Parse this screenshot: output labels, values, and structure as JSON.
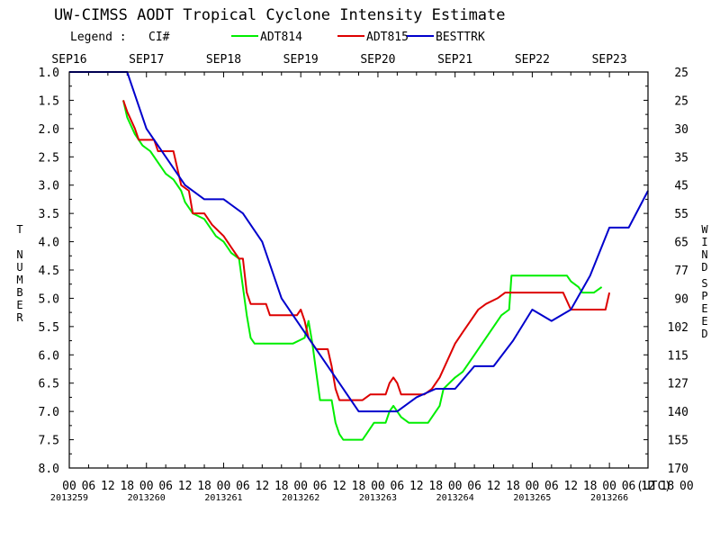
{
  "chart_data": {
    "type": "line",
    "title": "UW-CIMSS AODT Tropical Cyclone Intensity Estimate",
    "legend": {
      "label": "Legend :",
      "ci_label": "CI#",
      "placement": "top",
      "entries": [
        {
          "name": "ADT814",
          "color": "#00ee00"
        },
        {
          "name": "ADT815",
          "color": "#dd0000"
        },
        {
          "name": "BESTTRK",
          "color": "#0000cc"
        }
      ]
    },
    "left_axis": {
      "label_letters": [
        "T",
        "N",
        "U",
        "M",
        "B",
        "E",
        "R"
      ],
      "ticks": [
        "1.0",
        "1.5",
        "2.0",
        "2.5",
        "3.0",
        "3.5",
        "4.0",
        "4.5",
        "5.0",
        "5.5",
        "6.0",
        "6.5",
        "7.0",
        "7.5",
        "8.0"
      ],
      "ylim": [
        1.0,
        8.0
      ],
      "inverted": true
    },
    "right_axis": {
      "label_letters_1": [
        "W",
        "I",
        "N",
        "D"
      ],
      "label_letters_2": [
        "S",
        "P",
        "E",
        "E",
        "D"
      ],
      "ticks": [
        "25",
        "25",
        "30",
        "35",
        "45",
        "55",
        "65",
        "77",
        "90",
        "102",
        "115",
        "127",
        "140",
        "155",
        "170"
      ]
    },
    "top_dates": [
      "SEP16",
      "SEP17",
      "SEP18",
      "SEP19",
      "SEP20",
      "SEP21",
      "SEP22",
      "SEP23"
    ],
    "bottom_hours": [
      "00",
      "06",
      "12",
      "18",
      "00",
      "06",
      "12",
      "18",
      "00",
      "06",
      "12",
      "18",
      "00",
      "06",
      "12",
      "18",
      "00",
      "06",
      "12",
      "18",
      "00",
      "06",
      "12",
      "18",
      "00",
      "06",
      "12",
      "18",
      "00",
      "06",
      "12",
      "18",
      "00"
    ],
    "utc_label": "(UTC)",
    "julian_dates": [
      "2013259",
      "2013260",
      "2013261",
      "2013262",
      "2013263",
      "2013264",
      "2013265",
      "2013266"
    ],
    "xlim_days": [
      0,
      7.5
    ],
    "series": [
      {
        "name": "ADT814",
        "color": "#00ee00",
        "points": [
          [
            0.7,
            1.5
          ],
          [
            0.75,
            1.8
          ],
          [
            0.85,
            2.1
          ],
          [
            0.9,
            2.2
          ],
          [
            0.95,
            2.3
          ],
          [
            1.05,
            2.4
          ],
          [
            1.15,
            2.6
          ],
          [
            1.25,
            2.8
          ],
          [
            1.35,
            2.9
          ],
          [
            1.45,
            3.1
          ],
          [
            1.5,
            3.3
          ],
          [
            1.6,
            3.5
          ],
          [
            1.75,
            3.6
          ],
          [
            1.9,
            3.9
          ],
          [
            2.0,
            4.0
          ],
          [
            2.1,
            4.2
          ],
          [
            2.2,
            4.3
          ],
          [
            2.25,
            4.8
          ],
          [
            2.3,
            5.3
          ],
          [
            2.35,
            5.7
          ],
          [
            2.4,
            5.8
          ],
          [
            2.6,
            5.8
          ],
          [
            2.9,
            5.8
          ],
          [
            3.05,
            5.7
          ],
          [
            3.1,
            5.4
          ],
          [
            3.15,
            5.8
          ],
          [
            3.2,
            6.3
          ],
          [
            3.25,
            6.8
          ],
          [
            3.4,
            6.8
          ],
          [
            3.45,
            7.2
          ],
          [
            3.5,
            7.4
          ],
          [
            3.55,
            7.5
          ],
          [
            3.8,
            7.5
          ],
          [
            3.85,
            7.4
          ],
          [
            3.95,
            7.2
          ],
          [
            4.1,
            7.2
          ],
          [
            4.15,
            7.0
          ],
          [
            4.2,
            6.9
          ],
          [
            4.3,
            7.1
          ],
          [
            4.4,
            7.2
          ],
          [
            4.65,
            7.2
          ],
          [
            4.8,
            6.9
          ],
          [
            4.85,
            6.6
          ],
          [
            5.0,
            6.4
          ],
          [
            5.1,
            6.3
          ],
          [
            5.25,
            6.0
          ],
          [
            5.35,
            5.8
          ],
          [
            5.5,
            5.5
          ],
          [
            5.6,
            5.3
          ],
          [
            5.7,
            5.2
          ],
          [
            5.73,
            4.6
          ],
          [
            6.45,
            4.6
          ],
          [
            6.5,
            4.7
          ],
          [
            6.6,
            4.8
          ],
          [
            6.65,
            4.9
          ],
          [
            6.8,
            4.9
          ],
          [
            6.9,
            4.8
          ]
        ]
      },
      {
        "name": "ADT815",
        "color": "#dd0000",
        "points": [
          [
            0.7,
            1.5
          ],
          [
            0.75,
            1.7
          ],
          [
            0.85,
            2.0
          ],
          [
            0.9,
            2.2
          ],
          [
            1.1,
            2.2
          ],
          [
            1.15,
            2.4
          ],
          [
            1.35,
            2.4
          ],
          [
            1.4,
            2.7
          ],
          [
            1.45,
            3.0
          ],
          [
            1.55,
            3.1
          ],
          [
            1.6,
            3.5
          ],
          [
            1.75,
            3.5
          ],
          [
            1.85,
            3.7
          ],
          [
            2.0,
            3.9
          ],
          [
            2.1,
            4.1
          ],
          [
            2.2,
            4.3
          ],
          [
            2.25,
            4.3
          ],
          [
            2.3,
            4.9
          ],
          [
            2.35,
            5.1
          ],
          [
            2.55,
            5.1
          ],
          [
            2.6,
            5.3
          ],
          [
            2.95,
            5.3
          ],
          [
            3.0,
            5.2
          ],
          [
            3.05,
            5.4
          ],
          [
            3.1,
            5.7
          ],
          [
            3.2,
            5.9
          ],
          [
            3.35,
            5.9
          ],
          [
            3.4,
            6.2
          ],
          [
            3.45,
            6.6
          ],
          [
            3.5,
            6.8
          ],
          [
            3.8,
            6.8
          ],
          [
            3.9,
            6.7
          ],
          [
            4.1,
            6.7
          ],
          [
            4.15,
            6.5
          ],
          [
            4.2,
            6.4
          ],
          [
            4.25,
            6.5
          ],
          [
            4.3,
            6.7
          ],
          [
            4.4,
            6.7
          ],
          [
            4.6,
            6.7
          ],
          [
            4.7,
            6.6
          ],
          [
            4.8,
            6.4
          ],
          [
            4.9,
            6.1
          ],
          [
            5.0,
            5.8
          ],
          [
            5.1,
            5.6
          ],
          [
            5.2,
            5.4
          ],
          [
            5.3,
            5.2
          ],
          [
            5.4,
            5.1
          ],
          [
            5.55,
            5.0
          ],
          [
            5.65,
            4.9
          ],
          [
            6.0,
            4.9
          ],
          [
            6.4,
            4.9
          ],
          [
            6.5,
            5.2
          ],
          [
            6.95,
            5.2
          ],
          [
            7.0,
            4.9
          ]
        ]
      },
      {
        "name": "BESTTRK",
        "color": "#0000cc",
        "points": [
          [
            0.0,
            1.0
          ],
          [
            0.75,
            1.0
          ],
          [
            1.0,
            2.0
          ],
          [
            1.25,
            2.5
          ],
          [
            1.5,
            3.0
          ],
          [
            1.75,
            3.25
          ],
          [
            2.0,
            3.25
          ],
          [
            2.25,
            3.5
          ],
          [
            2.5,
            4.0
          ],
          [
            2.75,
            5.0
          ],
          [
            3.0,
            5.5
          ],
          [
            3.25,
            6.0
          ],
          [
            3.5,
            6.5
          ],
          [
            3.75,
            7.0
          ],
          [
            4.0,
            7.0
          ],
          [
            4.25,
            7.0
          ],
          [
            4.5,
            6.75
          ],
          [
            4.75,
            6.6
          ],
          [
            5.0,
            6.6
          ],
          [
            5.25,
            6.2
          ],
          [
            5.5,
            6.2
          ],
          [
            5.75,
            5.75
          ],
          [
            6.0,
            5.2
          ],
          [
            6.25,
            5.4
          ],
          [
            6.5,
            5.2
          ],
          [
            6.75,
            4.6
          ],
          [
            7.0,
            3.75
          ],
          [
            7.25,
            3.75
          ],
          [
            7.5,
            3.1
          ]
        ]
      }
    ]
  }
}
